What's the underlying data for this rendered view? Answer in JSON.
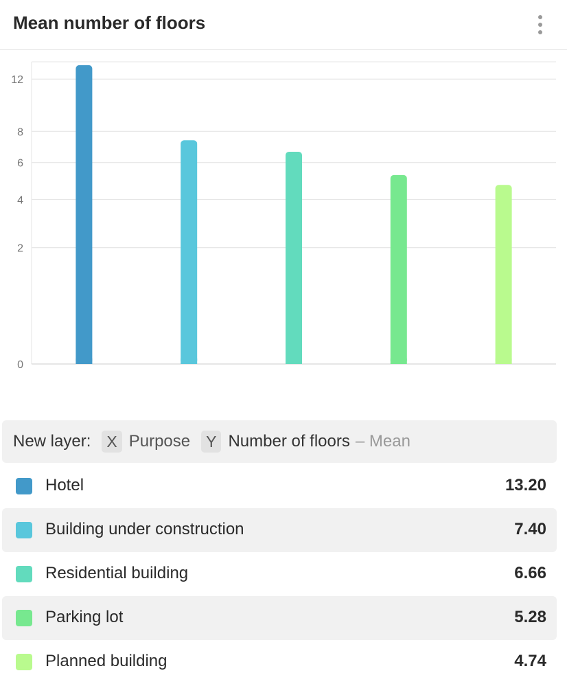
{
  "header": {
    "title": "Mean number of floors",
    "menu_icon": "more-vertical-icon"
  },
  "layer_bar": {
    "label": "New layer:",
    "x_key": "X",
    "x_field": "Purpose",
    "y_key": "Y",
    "y_field": "Number of floors",
    "y_aggregate": "– Mean"
  },
  "chart_data": {
    "type": "bar",
    "scale": "sqrt",
    "categories": [
      "Hotel",
      "Building under construction",
      "Residential building",
      "Parking lot",
      "Planned building"
    ],
    "values": [
      13.2,
      7.4,
      6.66,
      5.28,
      4.74
    ],
    "display_values": [
      "13.20",
      "7.40",
      "6.66",
      "5.28",
      "4.74"
    ],
    "colors": [
      "#4299c9",
      "#59c7dc",
      "#62dbbd",
      "#77e88f",
      "#b9fa8e"
    ],
    "yticks": [
      0,
      2,
      4,
      6,
      8,
      12
    ],
    "ylim": [
      0,
      13.5
    ],
    "grid": true,
    "title": "Mean number of floors"
  }
}
